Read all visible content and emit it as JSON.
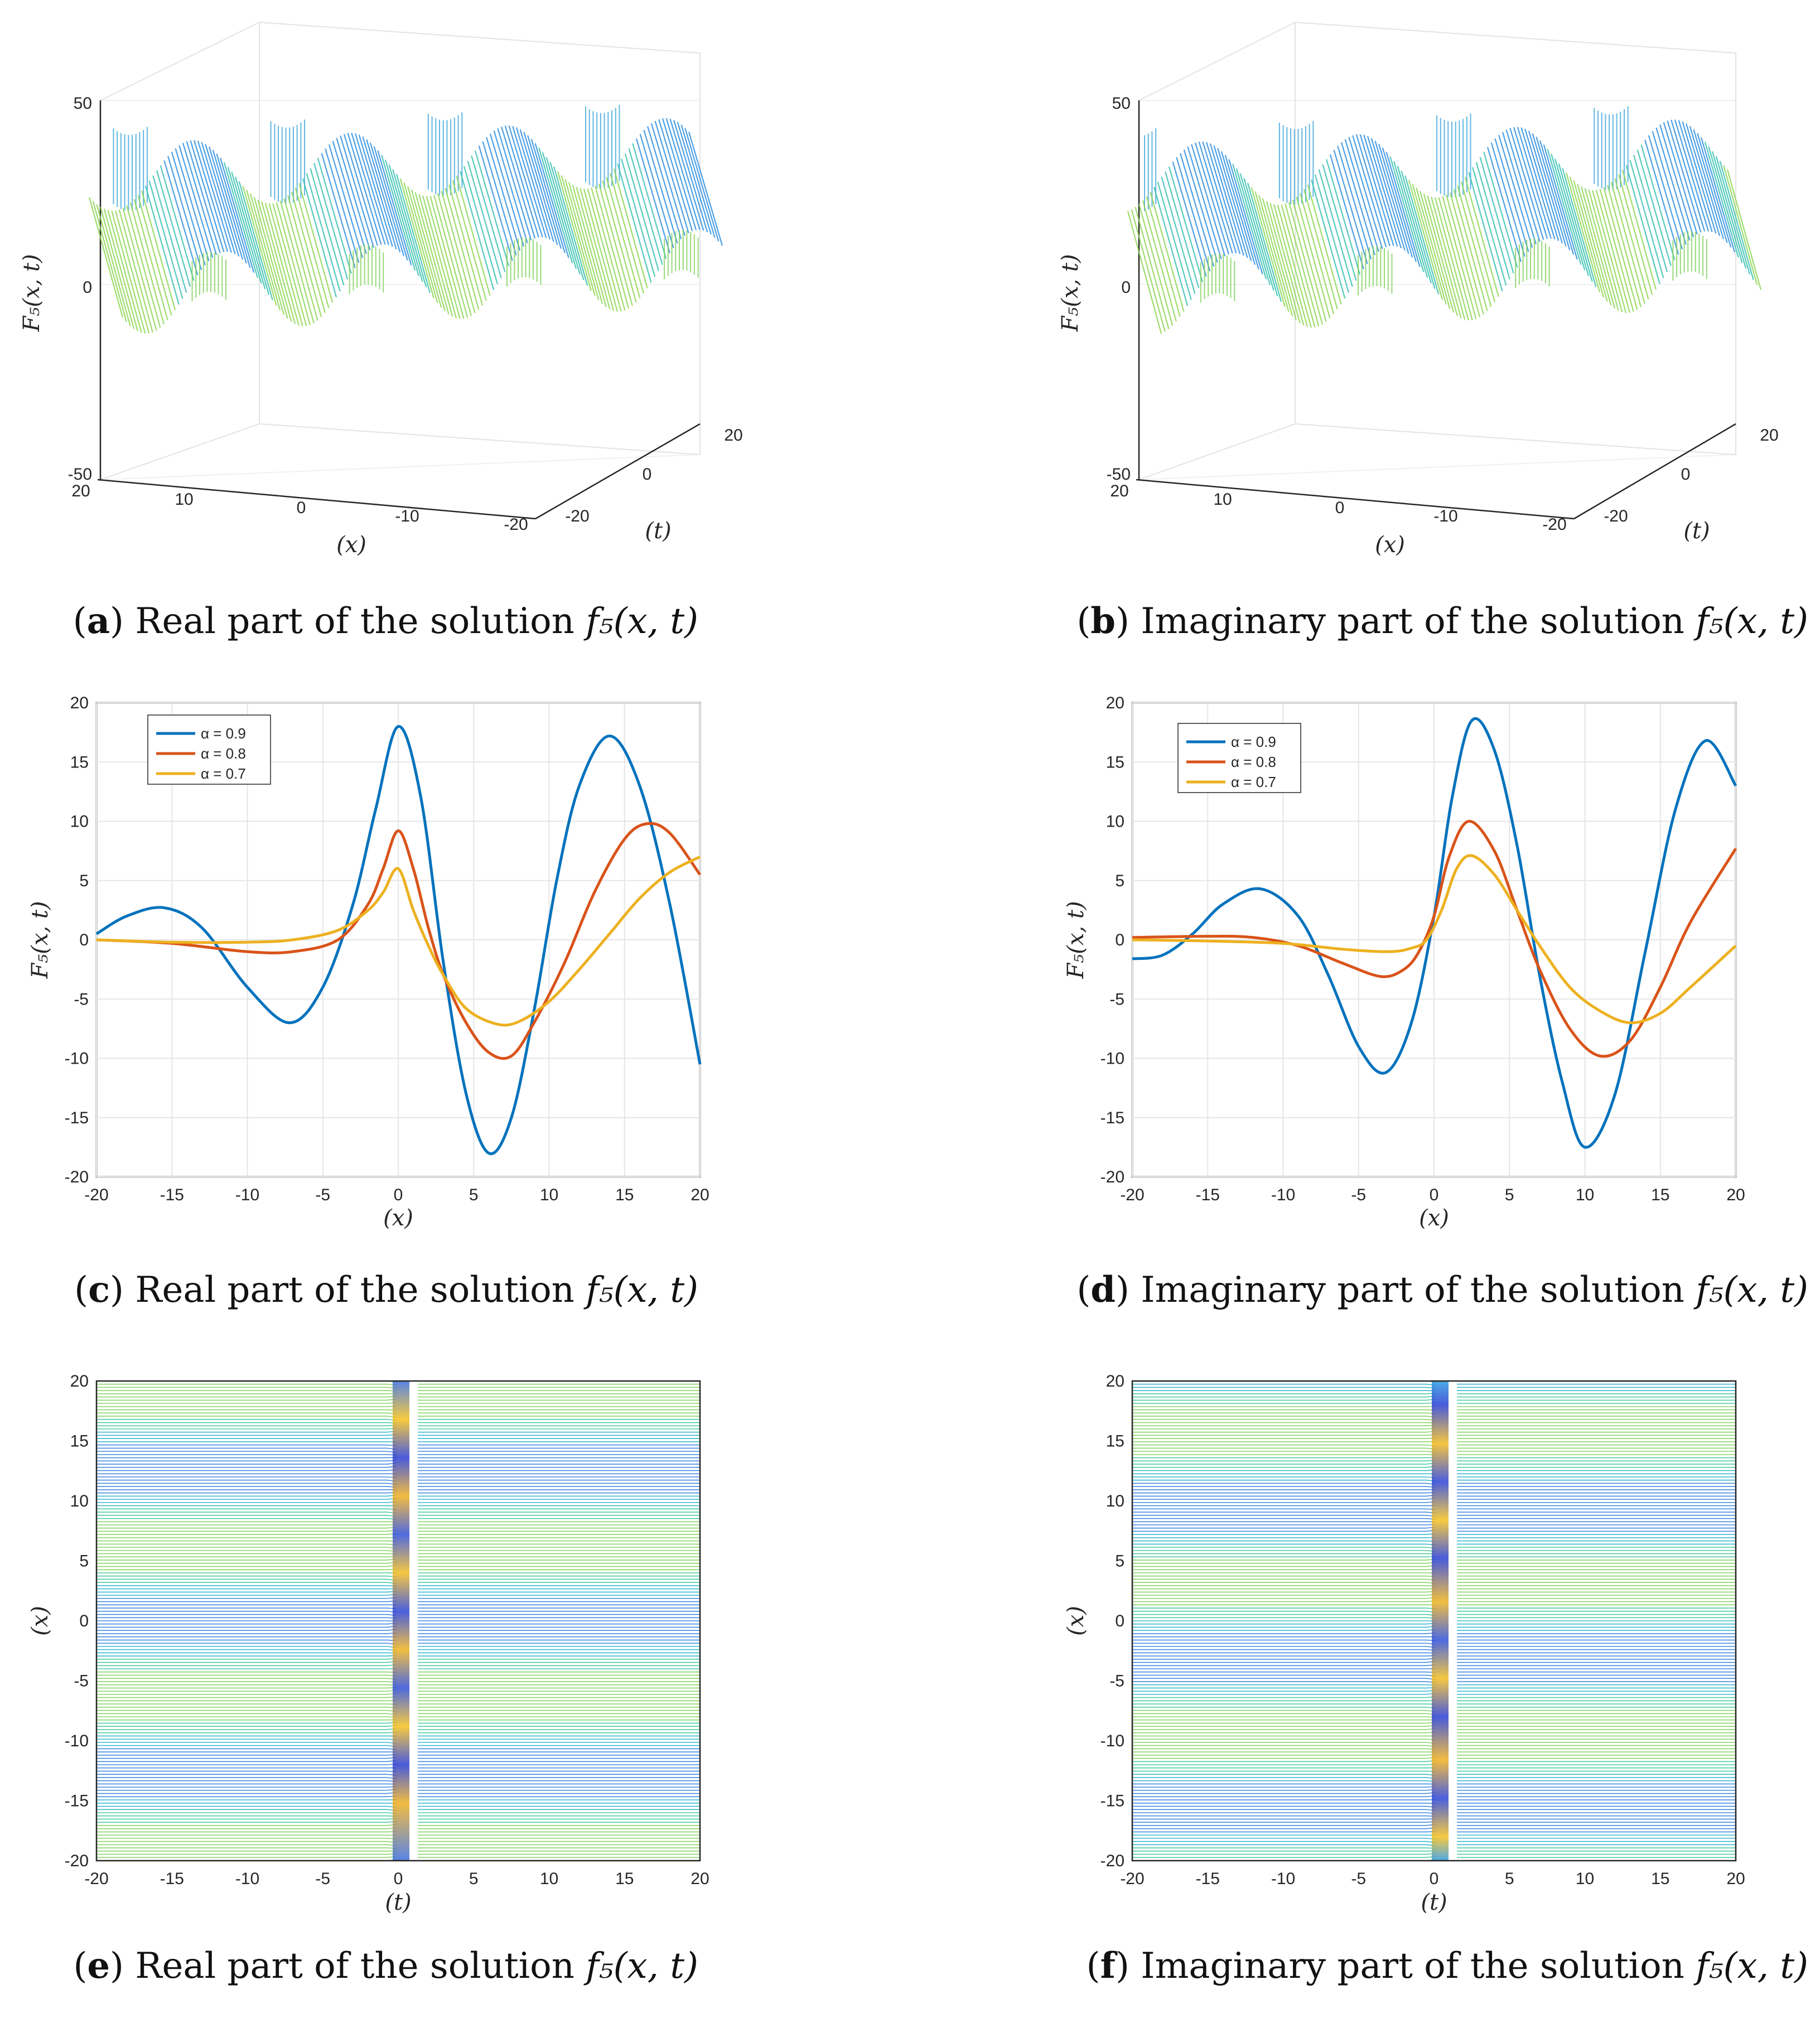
{
  "figure": {
    "captions": [
      {
        "letter": "a",
        "text": "Real part of the solution",
        "func": "f₅(x, t)"
      },
      {
        "letter": "b",
        "text": "Imaginary part of the solution",
        "func": "f₅(x, t)"
      },
      {
        "letter": "c",
        "text": "Real part of the solution",
        "func": "f₅(x, t)"
      },
      {
        "letter": "d",
        "text": "Imaginary part of the solution",
        "func": "f₅(x, t)"
      },
      {
        "letter": "e",
        "text": "Real part of the solution",
        "func": "f₅(x, t)"
      },
      {
        "letter": "f",
        "text": "Imaginary part of the solution",
        "func": "f₅(x, t)"
      }
    ]
  },
  "colors": {
    "blue": "#0072BD",
    "orange": "#D95319",
    "yellow": "#EDB120",
    "grid": "#e6e6e6",
    "surf_low": "#2f6fd6",
    "surf_mid": "#3cc3b0",
    "surf_high": "#9ad94e"
  },
  "chart_data": [
    {
      "id": "a",
      "type": "surface",
      "zlabel": "F₅(x, t)",
      "xlabel": "(x)",
      "ylabel": "(t)",
      "z_ticks": [
        "50",
        "0",
        "-50"
      ],
      "x_ticks": [
        "20",
        "10",
        "0",
        "-10",
        "-20"
      ],
      "t_ticks": [
        "-20",
        "0",
        "20"
      ],
      "zlim": [
        -50,
        50
      ],
      "xlim": [
        -20,
        20
      ],
      "tlim": [
        -20,
        20
      ]
    },
    {
      "id": "b",
      "type": "surface",
      "zlabel": "F₅(x, t)",
      "xlabel": "(x)",
      "ylabel": "(t)",
      "z_ticks": [
        "50",
        "0",
        "-50"
      ],
      "x_ticks": [
        "20",
        "10",
        "0",
        "-10",
        "-20"
      ],
      "t_ticks": [
        "-20",
        "0",
        "20"
      ],
      "zlim": [
        -50,
        50
      ],
      "xlim": [
        -20,
        20
      ],
      "tlim": [
        -20,
        20
      ]
    },
    {
      "id": "c",
      "type": "line",
      "xlabel": "(x)",
      "ylabel": "F₅(x, t)",
      "xlim": [
        -20,
        20
      ],
      "ylim": [
        -20,
        20
      ],
      "x_ticks": [
        "-20",
        "-15",
        "-10",
        "-5",
        "0",
        "5",
        "10",
        "15",
        "20"
      ],
      "y_ticks": [
        "20",
        "15",
        "10",
        "5",
        "0",
        "-5",
        "-10",
        "-15",
        "-20"
      ],
      "legend": [
        "α = 0.9",
        "α = 0.8",
        "α = 0.7"
      ],
      "legend_position": "top-left",
      "series": [
        {
          "name": "α = 0.9",
          "x": [
            -20,
            -18,
            -15.5,
            -13,
            -10,
            -7.2,
            -5,
            -3,
            -1.5,
            0,
            1.5,
            3,
            4.5,
            6,
            7.5,
            9,
            10.5,
            12,
            14,
            16,
            18,
            20
          ],
          "y": [
            0.5,
            2,
            2.7,
            1,
            -4,
            -7,
            -4,
            3,
            11,
            18,
            12,
            -2,
            -13,
            -18,
            -15,
            -6,
            5,
            13,
            17.2,
            13,
            3,
            -10.5
          ]
        },
        {
          "name": "α = 0.8",
          "x": [
            -20,
            -15,
            -10,
            -7,
            -4,
            -2,
            -1,
            0,
            1,
            2,
            3,
            4.5,
            6,
            7.5,
            9,
            11,
            13,
            15,
            16.5,
            18,
            20
          ],
          "y": [
            0,
            -0.3,
            -1,
            -1,
            0,
            3,
            6,
            9.2,
            6,
            1,
            -3,
            -7,
            -9.5,
            -9.8,
            -7,
            -2,
            4,
            8.5,
            9.8,
            9,
            5.5
          ]
        },
        {
          "name": "α = 0.7",
          "x": [
            -20,
            -15,
            -10,
            -7,
            -4,
            -2,
            -1,
            0,
            1,
            2,
            3,
            4.5,
            6.5,
            8,
            10,
            12,
            14,
            16,
            18,
            20
          ],
          "y": [
            0,
            -0.2,
            -0.2,
            0,
            0.8,
            2.5,
            4,
            6,
            2.5,
            -0.5,
            -3,
            -5.8,
            -7.1,
            -6.9,
            -5.2,
            -2.5,
            0.5,
            3.5,
            5.7,
            7
          ]
        }
      ]
    },
    {
      "id": "d",
      "type": "line",
      "xlabel": "(x)",
      "ylabel": "F₅(x, t)",
      "xlim": [
        -20,
        20
      ],
      "ylim": [
        -20,
        20
      ],
      "x_ticks": [
        "-20",
        "-15",
        "-10",
        "-5",
        "0",
        "5",
        "10",
        "15",
        "20"
      ],
      "y_ticks": [
        "20",
        "15",
        "10",
        "5",
        "0",
        "-5",
        "-10",
        "-15",
        "-20"
      ],
      "legend": [
        "α = 0.9",
        "α = 0.8",
        "α = 0.7"
      ],
      "legend_position": "top-left",
      "series": [
        {
          "name": "α = 0.9",
          "x": [
            -20,
            -18,
            -16,
            -14,
            -11.5,
            -9,
            -7,
            -5,
            -3.2,
            -1.5,
            0,
            1.2,
            2.5,
            4,
            5.5,
            7,
            8.5,
            10,
            12,
            14,
            16,
            18,
            20
          ],
          "y": [
            -1.6,
            -1.3,
            0.5,
            3,
            4.3,
            2,
            -3,
            -9,
            -11.2,
            -7,
            2,
            12,
            18.5,
            16,
            8,
            -3,
            -12,
            -17.5,
            -13,
            -1,
            11,
            16.8,
            13
          ]
        },
        {
          "name": "α = 0.8",
          "x": [
            -20,
            -15,
            -12,
            -9,
            -6,
            -3.5,
            -2,
            -1,
            0,
            1,
            2.3,
            4,
            5.5,
            7,
            9,
            11,
            13,
            15,
            17,
            20
          ],
          "y": [
            0.2,
            0.3,
            0.2,
            -0.5,
            -2,
            -3.1,
            -2.5,
            -1,
            2,
            7,
            10,
            7.5,
            2.5,
            -2.5,
            -7.5,
            -9.8,
            -8.5,
            -4,
            1.5,
            7.7
          ]
        },
        {
          "name": "α = 0.7",
          "x": [
            -20,
            -15,
            -10,
            -6,
            -3,
            -1.5,
            -0.5,
            0.5,
            1.5,
            2.5,
            4,
            5.5,
            7,
            9,
            11,
            13,
            15,
            17,
            20
          ],
          "y": [
            0,
            -0.1,
            -0.3,
            -0.8,
            -1,
            -0.7,
            0,
            2.5,
            6,
            7.1,
            5.5,
            2.5,
            -0.5,
            -4,
            -6,
            -7,
            -6.2,
            -4,
            -0.5
          ]
        }
      ]
    },
    {
      "id": "e",
      "type": "contour",
      "xlabel": "(t)",
      "ylabel": "(x)",
      "xlim": [
        -20,
        20
      ],
      "ylim": [
        -20,
        20
      ],
      "x_ticks": [
        "-20",
        "-15",
        "-10",
        "-5",
        "0",
        "5",
        "10",
        "15",
        "20"
      ],
      "y_ticks": [
        "20",
        "15",
        "10",
        "5",
        "0",
        "-5",
        "-10",
        "-15",
        "-20"
      ]
    },
    {
      "id": "f",
      "type": "contour",
      "xlabel": "(t)",
      "ylabel": "(x)",
      "xlim": [
        -20,
        20
      ],
      "ylim": [
        -20,
        20
      ],
      "x_ticks": [
        "-20",
        "-15",
        "-10",
        "-5",
        "0",
        "5",
        "10",
        "15",
        "20"
      ],
      "y_ticks": [
        "20",
        "15",
        "10",
        "5",
        "0",
        "-5",
        "-10",
        "-15",
        "-20"
      ]
    }
  ]
}
